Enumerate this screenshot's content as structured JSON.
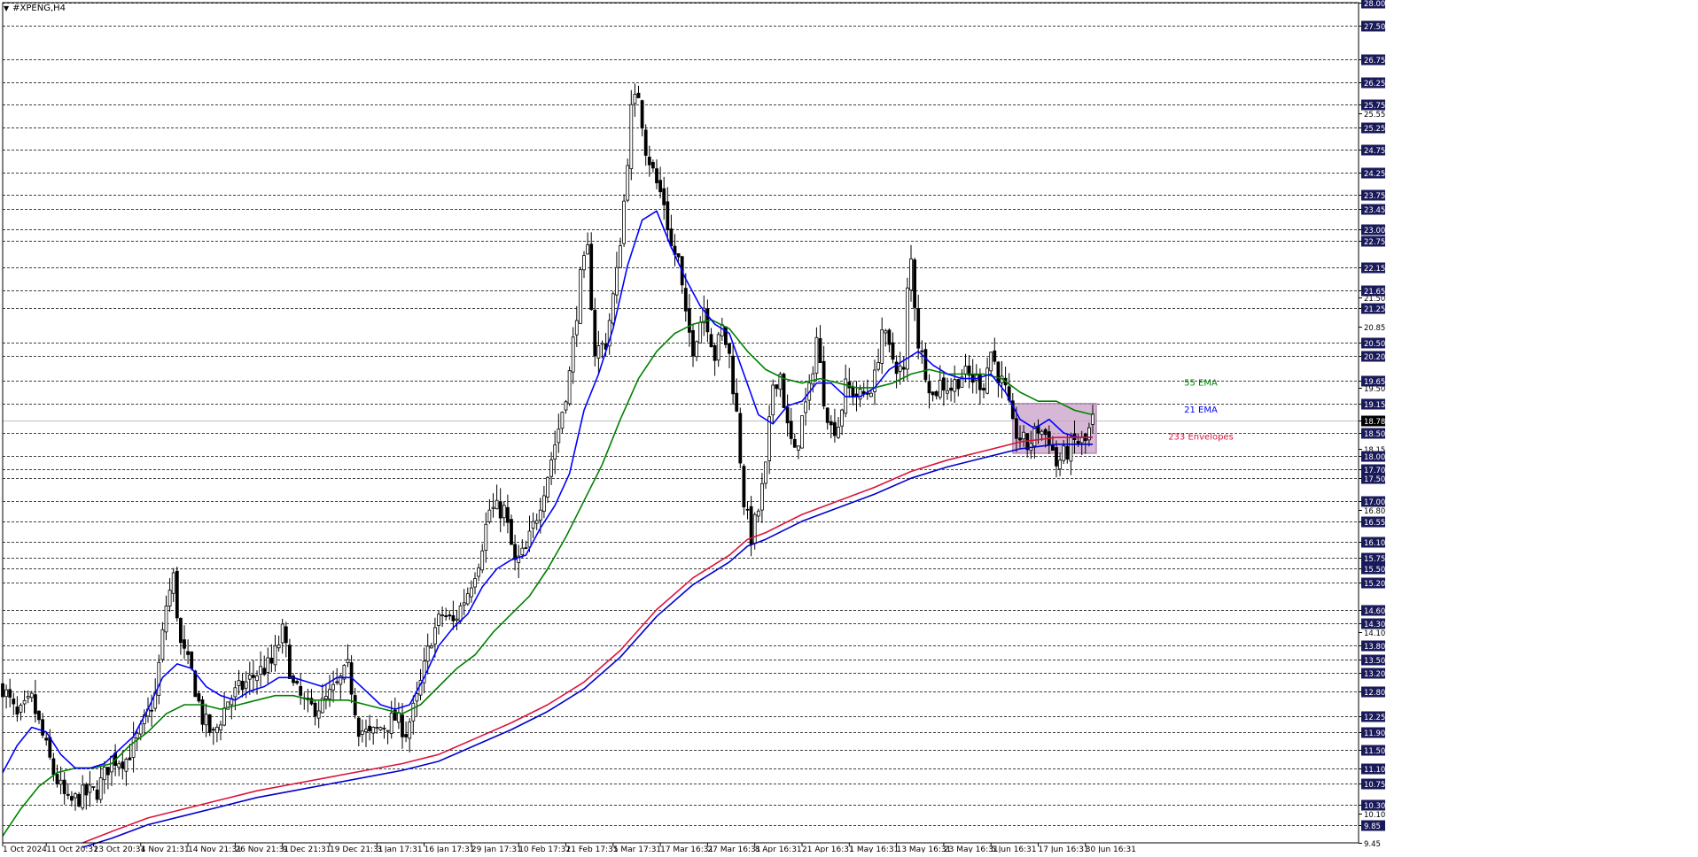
{
  "window": {
    "title": "#XPENG,H4",
    "dropdown_icon": "triangle-down-icon"
  },
  "chart_data": {
    "type": "candlestick",
    "symbol": "#XPENG",
    "timeframe": "H4",
    "current_price": "18.78",
    "ylim": [
      9.45,
      28.0
    ],
    "grid": "horizontal-dashed",
    "y_ticks": [
      "28.00",
      "27.50",
      "26.75",
      "26.25",
      "25.75",
      "25.55",
      "25.25",
      "24.75",
      "24.25",
      "23.75",
      "23.45",
      "23.00",
      "22.75",
      "22.15",
      "21.65",
      "21.50",
      "21.25",
      "20.85",
      "20.50",
      "20.20",
      "19.65",
      "19.50",
      "19.15",
      "18.78",
      "18.50",
      "18.15",
      "18.00",
      "17.70",
      "17.50",
      "17.00",
      "16.80",
      "16.55",
      "16.10",
      "15.75",
      "15.50",
      "15.20",
      "14.60",
      "14.30",
      "14.10",
      "13.80",
      "13.50",
      "13.20",
      "12.80",
      "12.25",
      "11.90",
      "11.50",
      "11.10",
      "10.75",
      "10.30",
      "10.10",
      "9.85",
      "9.45"
    ],
    "highlighted_ticks": [
      "28.00",
      "27.50",
      "26.75",
      "26.25",
      "25.75",
      "25.25",
      "24.75",
      "24.25",
      "23.75",
      "23.45",
      "23.00",
      "22.75",
      "22.15",
      "21.65",
      "21.25",
      "20.50",
      "20.20",
      "19.65",
      "19.15",
      "18.78",
      "18.50",
      "18.00",
      "17.70",
      "17.50",
      "17.00",
      "16.55",
      "16.10",
      "15.75",
      "15.50",
      "15.20",
      "14.60",
      "14.30",
      "13.80",
      "13.50",
      "13.20",
      "12.80",
      "12.25",
      "11.90",
      "11.50",
      "11.10",
      "10.75",
      "10.30",
      "9.85"
    ],
    "x_labels": [
      "1 Oct 2024",
      "11 Oct 20:31",
      "23 Oct 20:31",
      "4 Nov 21:31",
      "14 Nov 21:31",
      "26 Nov 21:31",
      "9 Dec 21:31",
      "19 Dec 21:31",
      "3 Jan 17:31",
      "16 Jan 17:31",
      "29 Jan 17:31",
      "10 Feb 17:31",
      "21 Feb 17:31",
      "5 Mar 17:31",
      "17 Mar 16:31",
      "27 Mar 16:31",
      "8 Apr 16:31",
      "21 Apr 16:31",
      "1 May 16:31",
      "13 May 16:31",
      "23 May 16:31",
      "5 Jun 16:31",
      "17 Jun 16:31",
      "30 Jun 16:31"
    ],
    "x_label_index": [
      0,
      12,
      25,
      38,
      51,
      64,
      77,
      90,
      103,
      116,
      129,
      142,
      155,
      168,
      181,
      194,
      207,
      220,
      233,
      246,
      259,
      272,
      285,
      298
    ],
    "candle_count": 301,
    "close_anchors": [
      [
        0,
        12.9
      ],
      [
        4,
        12.2
      ],
      [
        8,
        12.6
      ],
      [
        14,
        11.0
      ],
      [
        18,
        10.3
      ],
      [
        22,
        10.5
      ],
      [
        26,
        10.6
      ],
      [
        30,
        11.3
      ],
      [
        34,
        11.3
      ],
      [
        38,
        11.9
      ],
      [
        42,
        12.7
      ],
      [
        45,
        14.7
      ],
      [
        47,
        15.3
      ],
      [
        49,
        13.8
      ],
      [
        52,
        13.2
      ],
      [
        55,
        12.2
      ],
      [
        58,
        11.8
      ],
      [
        62,
        12.6
      ],
      [
        66,
        12.9
      ],
      [
        70,
        13.2
      ],
      [
        74,
        13.4
      ],
      [
        77,
        14.1
      ],
      [
        80,
        12.9
      ],
      [
        84,
        12.4
      ],
      [
        88,
        12.5
      ],
      [
        92,
        12.9
      ],
      [
        95,
        13.3
      ],
      [
        98,
        12.0
      ],
      [
        101,
        11.8
      ],
      [
        104,
        12.0
      ],
      [
        108,
        12.2
      ],
      [
        111,
        11.9
      ],
      [
        114,
        12.6
      ],
      [
        118,
        14.0
      ],
      [
        121,
        14.5
      ],
      [
        124,
        14.3
      ],
      [
        128,
        15.0
      ],
      [
        131,
        15.7
      ],
      [
        134,
        16.8
      ],
      [
        138,
        16.8
      ],
      [
        141,
        15.6
      ],
      [
        144,
        15.9
      ],
      [
        147,
        16.7
      ],
      [
        150,
        17.6
      ],
      [
        153,
        18.6
      ],
      [
        156,
        19.8
      ],
      [
        159,
        21.9
      ],
      [
        161,
        22.5
      ],
      [
        163,
        20.3
      ],
      [
        166,
        20.5
      ],
      [
        169,
        22.0
      ],
      [
        171,
        23.6
      ],
      [
        173,
        25.6
      ],
      [
        175,
        26.0
      ],
      [
        177,
        24.8
      ],
      [
        180,
        24.0
      ],
      [
        182,
        23.6
      ],
      [
        184,
        22.6
      ],
      [
        186,
        22.3
      ],
      [
        188,
        21.0
      ],
      [
        190,
        20.4
      ],
      [
        193,
        21.3
      ],
      [
        196,
        20.2
      ],
      [
        198,
        20.8
      ],
      [
        200,
        20.2
      ],
      [
        202,
        18.9
      ],
      [
        204,
        17.0
      ],
      [
        206,
        16.2
      ],
      [
        208,
        16.8
      ],
      [
        210,
        17.7
      ],
      [
        212,
        19.6
      ],
      [
        214,
        19.8
      ],
      [
        216,
        18.6
      ],
      [
        218,
        18.0
      ],
      [
        220,
        18.8
      ],
      [
        222,
        19.4
      ],
      [
        224,
        20.6
      ],
      [
        226,
        19.3
      ],
      [
        228,
        18.6
      ],
      [
        230,
        18.7
      ],
      [
        232,
        19.5
      ],
      [
        234,
        19.4
      ],
      [
        236,
        19.3
      ],
      [
        238,
        19.4
      ],
      [
        240,
        19.7
      ],
      [
        242,
        20.8
      ],
      [
        244,
        20.3
      ],
      [
        246,
        20.0
      ],
      [
        248,
        19.8
      ],
      [
        249,
        21.6
      ],
      [
        250,
        22.3
      ],
      [
        252,
        20.5
      ],
      [
        254,
        19.9
      ],
      [
        256,
        19.3
      ],
      [
        258,
        19.6
      ],
      [
        261,
        19.5
      ],
      [
        264,
        19.8
      ],
      [
        267,
        19.7
      ],
      [
        270,
        19.6
      ],
      [
        272,
        20.3
      ],
      [
        274,
        19.8
      ],
      [
        276,
        19.4
      ],
      [
        278,
        18.6
      ],
      [
        280,
        18.4
      ],
      [
        282,
        18.2
      ],
      [
        285,
        18.6
      ],
      [
        288,
        18.4
      ],
      [
        290,
        17.8
      ],
      [
        292,
        18.0
      ],
      [
        295,
        18.3
      ],
      [
        298,
        18.3
      ],
      [
        300,
        18.78
      ]
    ],
    "series": [
      {
        "name": "55 EMA",
        "label": "55 EMA",
        "color": "#008000",
        "points": [
          [
            0,
            9.6
          ],
          [
            5,
            10.2
          ],
          [
            10,
            10.7
          ],
          [
            15,
            11.0
          ],
          [
            20,
            11.1
          ],
          [
            25,
            11.1
          ],
          [
            30,
            11.2
          ],
          [
            35,
            11.6
          ],
          [
            40,
            11.9
          ],
          [
            45,
            12.3
          ],
          [
            50,
            12.5
          ],
          [
            55,
            12.5
          ],
          [
            60,
            12.4
          ],
          [
            65,
            12.5
          ],
          [
            70,
            12.6
          ],
          [
            75,
            12.7
          ],
          [
            80,
            12.7
          ],
          [
            85,
            12.6
          ],
          [
            90,
            12.6
          ],
          [
            95,
            12.6
          ],
          [
            100,
            12.5
          ],
          [
            105,
            12.4
          ],
          [
            110,
            12.3
          ],
          [
            115,
            12.5
          ],
          [
            120,
            12.9
          ],
          [
            125,
            13.3
          ],
          [
            130,
            13.6
          ],
          [
            135,
            14.1
          ],
          [
            140,
            14.5
          ],
          [
            145,
            14.9
          ],
          [
            150,
            15.5
          ],
          [
            155,
            16.2
          ],
          [
            160,
            17.0
          ],
          [
            165,
            17.8
          ],
          [
            170,
            18.8
          ],
          [
            175,
            19.7
          ],
          [
            180,
            20.3
          ],
          [
            185,
            20.7
          ],
          [
            190,
            20.9
          ],
          [
            195,
            21.0
          ],
          [
            200,
            20.8
          ],
          [
            205,
            20.3
          ],
          [
            210,
            19.9
          ],
          [
            215,
            19.7
          ],
          [
            220,
            19.6
          ],
          [
            225,
            19.7
          ],
          [
            230,
            19.6
          ],
          [
            235,
            19.5
          ],
          [
            240,
            19.5
          ],
          [
            245,
            19.6
          ],
          [
            250,
            19.8
          ],
          [
            255,
            19.9
          ],
          [
            260,
            19.8
          ],
          [
            265,
            19.8
          ],
          [
            270,
            19.8
          ],
          [
            275,
            19.7
          ],
          [
            280,
            19.4
          ],
          [
            285,
            19.2
          ],
          [
            290,
            19.2
          ],
          [
            295,
            19.0
          ],
          [
            300,
            18.9
          ]
        ]
      },
      {
        "name": "21 EMA",
        "label": "21 EMA",
        "color": "#0000ff",
        "points": [
          [
            0,
            11.0
          ],
          [
            4,
            11.6
          ],
          [
            8,
            12.0
          ],
          [
            12,
            11.9
          ],
          [
            16,
            11.4
          ],
          [
            20,
            11.1
          ],
          [
            24,
            11.1
          ],
          [
            28,
            11.2
          ],
          [
            32,
            11.5
          ],
          [
            36,
            11.8
          ],
          [
            40,
            12.4
          ],
          [
            44,
            13.1
          ],
          [
            48,
            13.4
          ],
          [
            52,
            13.3
          ],
          [
            56,
            12.9
          ],
          [
            60,
            12.7
          ],
          [
            64,
            12.6
          ],
          [
            68,
            12.8
          ],
          [
            72,
            12.9
          ],
          [
            76,
            13.1
          ],
          [
            80,
            13.1
          ],
          [
            84,
            13.0
          ],
          [
            88,
            12.9
          ],
          [
            92,
            13.1
          ],
          [
            96,
            13.1
          ],
          [
            100,
            12.8
          ],
          [
            104,
            12.5
          ],
          [
            108,
            12.4
          ],
          [
            112,
            12.5
          ],
          [
            116,
            13.1
          ],
          [
            120,
            13.8
          ],
          [
            124,
            14.2
          ],
          [
            128,
            14.5
          ],
          [
            132,
            15.1
          ],
          [
            136,
            15.5
          ],
          [
            140,
            15.7
          ],
          [
            144,
            15.8
          ],
          [
            148,
            16.4
          ],
          [
            152,
            16.9
          ],
          [
            156,
            17.6
          ],
          [
            160,
            19.0
          ],
          [
            164,
            19.8
          ],
          [
            168,
            20.8
          ],
          [
            172,
            22.2
          ],
          [
            176,
            23.2
          ],
          [
            180,
            23.4
          ],
          [
            184,
            22.6
          ],
          [
            188,
            21.9
          ],
          [
            192,
            21.3
          ],
          [
            196,
            20.9
          ],
          [
            200,
            20.7
          ],
          [
            204,
            19.8
          ],
          [
            208,
            18.9
          ],
          [
            212,
            18.7
          ],
          [
            216,
            19.1
          ],
          [
            220,
            19.2
          ],
          [
            224,
            19.6
          ],
          [
            228,
            19.6
          ],
          [
            232,
            19.3
          ],
          [
            236,
            19.3
          ],
          [
            240,
            19.5
          ],
          [
            244,
            19.9
          ],
          [
            248,
            20.1
          ],
          [
            252,
            20.3
          ],
          [
            256,
            20.0
          ],
          [
            260,
            19.8
          ],
          [
            264,
            19.7
          ],
          [
            268,
            19.7
          ],
          [
            272,
            19.8
          ],
          [
            276,
            19.4
          ],
          [
            280,
            18.8
          ],
          [
            284,
            18.6
          ],
          [
            288,
            18.8
          ],
          [
            292,
            18.5
          ],
          [
            296,
            18.4
          ],
          [
            300,
            18.4
          ]
        ]
      },
      {
        "name": "233 Envelopes upper",
        "label": "233 Envelopes",
        "color": "#dc143c",
        "points": [
          [
            22,
            9.45
          ],
          [
            30,
            9.7
          ],
          [
            40,
            10.0
          ],
          [
            50,
            10.2
          ],
          [
            60,
            10.4
          ],
          [
            70,
            10.6
          ],
          [
            80,
            10.75
          ],
          [
            90,
            10.9
          ],
          [
            100,
            11.05
          ],
          [
            110,
            11.2
          ],
          [
            120,
            11.4
          ],
          [
            130,
            11.75
          ],
          [
            140,
            12.1
          ],
          [
            150,
            12.5
          ],
          [
            160,
            13.0
          ],
          [
            170,
            13.7
          ],
          [
            180,
            14.6
          ],
          [
            190,
            15.3
          ],
          [
            200,
            15.8
          ],
          [
            205,
            16.15
          ],
          [
            210,
            16.3
          ],
          [
            220,
            16.7
          ],
          [
            230,
            17.0
          ],
          [
            240,
            17.3
          ],
          [
            250,
            17.65
          ],
          [
            260,
            17.9
          ],
          [
            270,
            18.1
          ],
          [
            280,
            18.3
          ],
          [
            290,
            18.4
          ],
          [
            300,
            18.4
          ]
        ]
      },
      {
        "name": "233 Envelopes lower",
        "label": "",
        "color": "#0000cd",
        "points": [
          [
            22,
            9.35
          ],
          [
            30,
            9.55
          ],
          [
            40,
            9.85
          ],
          [
            50,
            10.05
          ],
          [
            60,
            10.25
          ],
          [
            70,
            10.45
          ],
          [
            80,
            10.6
          ],
          [
            90,
            10.75
          ],
          [
            100,
            10.9
          ],
          [
            110,
            11.05
          ],
          [
            120,
            11.25
          ],
          [
            130,
            11.6
          ],
          [
            140,
            11.95
          ],
          [
            150,
            12.35
          ],
          [
            160,
            12.85
          ],
          [
            170,
            13.55
          ],
          [
            180,
            14.45
          ],
          [
            190,
            15.15
          ],
          [
            200,
            15.65
          ],
          [
            205,
            16.0
          ],
          [
            210,
            16.15
          ],
          [
            220,
            16.55
          ],
          [
            230,
            16.85
          ],
          [
            240,
            17.15
          ],
          [
            250,
            17.5
          ],
          [
            260,
            17.75
          ],
          [
            270,
            17.95
          ],
          [
            280,
            18.15
          ],
          [
            290,
            18.25
          ],
          [
            300,
            18.25
          ]
        ]
      }
    ],
    "highlight_box": {
      "x_from": 278,
      "x_to": 301,
      "y_from": 18.05,
      "y_to": 19.15,
      "color": "#c8a0c8"
    },
    "legend_position": "right-inline"
  }
}
